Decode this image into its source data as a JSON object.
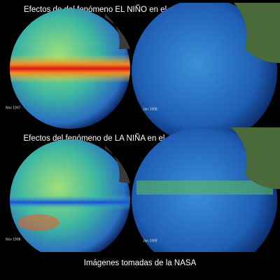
{
  "panels": [
    {
      "title": "Efectos de del fenómeno EL NIÑO en el océano y su vida marina",
      "captions": [
        "Nov 1997",
        "Jan 1998"
      ]
    },
    {
      "title": "Efectos del fenómeno de LA NIÑA en el océano y su vida marina.",
      "captions": [
        "Nov 1998",
        "Jan 1999"
      ]
    }
  ],
  "footer": "Imágenes tomadas de la NASA"
}
